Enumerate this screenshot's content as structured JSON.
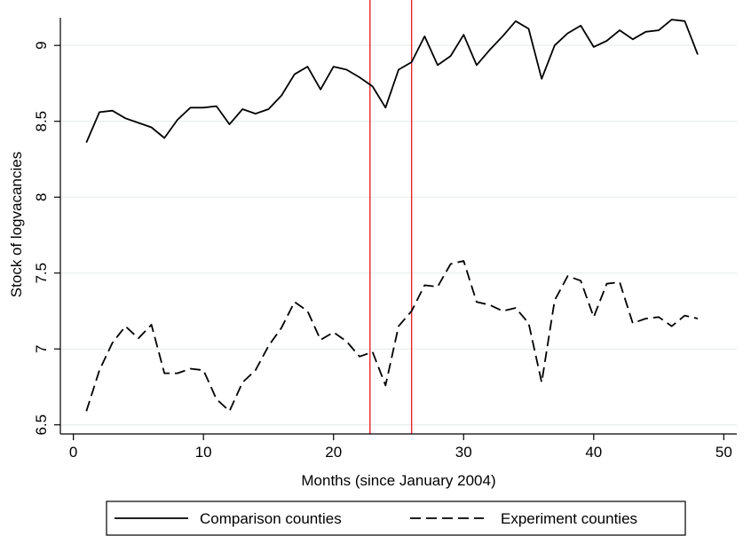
{
  "chart_data": {
    "type": "line",
    "title": "",
    "xlabel": "Months (since January 2004)",
    "ylabel": "Stock of logvacancies",
    "xlim": [
      -1,
      51
    ],
    "ylim": [
      6.44,
      9.27
    ],
    "xticks": [
      0,
      10,
      20,
      30,
      40,
      50
    ],
    "yticks": [
      6.5,
      7,
      7.5,
      8,
      8.5,
      9
    ],
    "ytick_labels": [
      "6.5",
      "7",
      "7.5",
      "8",
      "8.5",
      "9"
    ],
    "grid": "horizontal",
    "legend_position": "bottom",
    "vertical_lines": [
      {
        "x": 22.8,
        "color": "#e8262a"
      },
      {
        "x": 26.0,
        "color": "#e8262a"
      }
    ],
    "x": [
      1,
      2,
      3,
      4,
      5,
      6,
      7,
      8,
      9,
      10,
      11,
      12,
      13,
      14,
      15,
      16,
      17,
      18,
      19,
      20,
      21,
      22,
      23,
      24,
      25,
      26,
      27,
      28,
      29,
      30,
      31,
      32,
      33,
      34,
      35,
      36,
      37,
      38,
      39,
      40,
      41,
      42,
      43,
      44,
      45,
      46,
      47,
      48
    ],
    "series": [
      {
        "name": "Comparison counties",
        "style": "solid",
        "values": [
          8.36,
          8.56,
          8.57,
          8.52,
          8.49,
          8.46,
          8.39,
          8.51,
          8.59,
          8.59,
          8.6,
          8.48,
          8.58,
          8.55,
          8.58,
          8.67,
          8.81,
          8.86,
          8.71,
          8.86,
          8.84,
          8.79,
          8.73,
          8.59,
          8.84,
          8.89,
          9.06,
          8.87,
          8.93,
          9.07,
          8.87,
          8.97,
          9.06,
          9.16,
          9.11,
          8.78,
          9.0,
          9.08,
          9.13,
          8.99,
          9.03,
          9.1,
          9.04,
          9.09,
          9.1,
          9.17,
          9.16,
          8.94
        ]
      },
      {
        "name": "Experiment counties",
        "style": "dashed",
        "values": [
          6.59,
          6.86,
          7.04,
          7.15,
          7.07,
          7.16,
          6.84,
          6.84,
          6.87,
          6.86,
          6.67,
          6.59,
          6.78,
          6.86,
          7.02,
          7.14,
          7.31,
          7.25,
          7.06,
          7.11,
          7.05,
          6.95,
          6.98,
          6.76,
          7.15,
          7.25,
          7.42,
          7.41,
          7.56,
          7.58,
          7.31,
          7.29,
          7.25,
          7.27,
          7.17,
          6.78,
          7.32,
          7.48,
          7.45,
          7.21,
          7.43,
          7.44,
          7.17,
          7.2,
          7.21,
          7.15,
          7.22,
          7.2
        ]
      }
    ]
  }
}
